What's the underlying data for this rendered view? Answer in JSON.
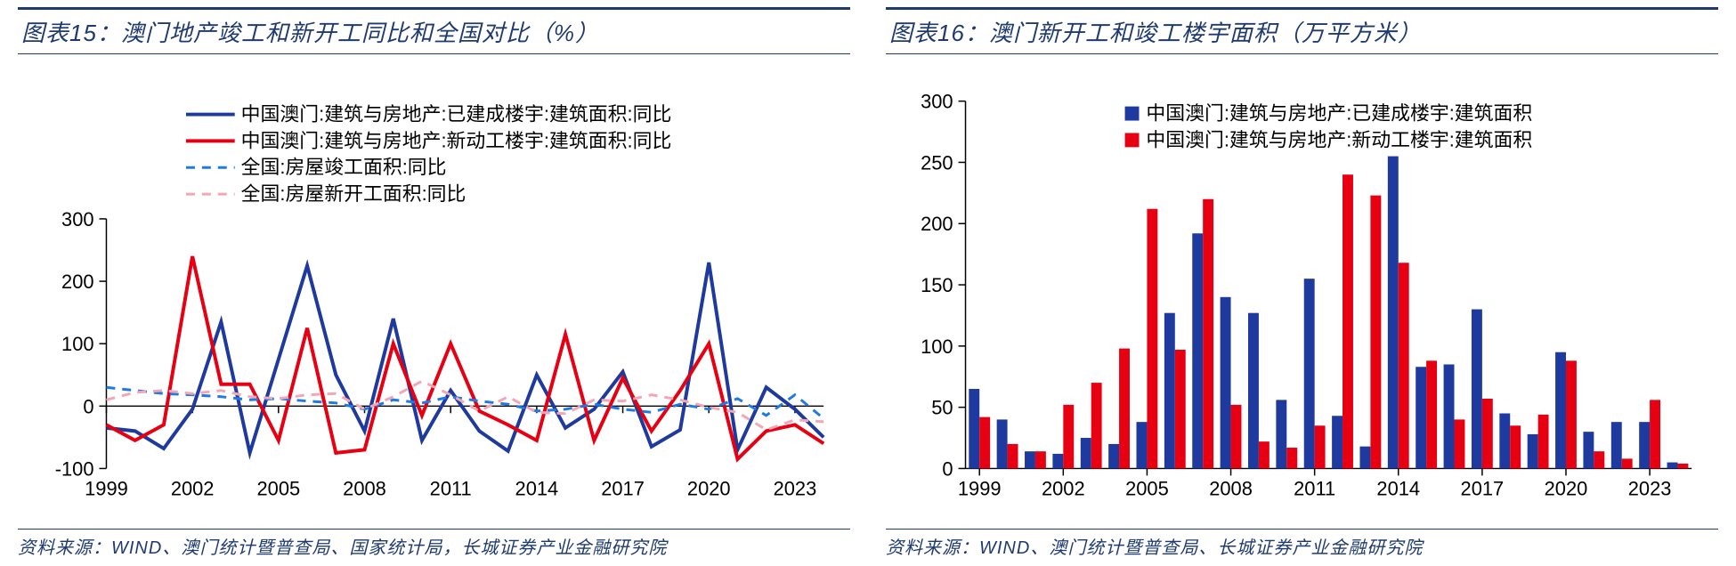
{
  "left": {
    "title": "图表15：澳门地产竣工和新开工同比和全国对比（%）",
    "source": "资料来源：WIND、澳门统计暨普查局、国家统计局，长城证券产业金融研究院",
    "chart": {
      "type": "line",
      "background_color": "#ffffff",
      "grid_color": "#000000",
      "xlim": [
        1999,
        2024
      ],
      "ylim": [
        -100,
        300
      ],
      "yticks": [
        -100,
        0,
        100,
        200,
        300
      ],
      "xticks": [
        1999,
        2002,
        2005,
        2008,
        2011,
        2014,
        2017,
        2020,
        2023
      ],
      "label_fontsize": 22,
      "legend_fontsize": 22,
      "line_width": 4,
      "dash_width": 3,
      "series": [
        {
          "name": "中国澳门:建筑与房地产:已建成楼宇:建筑面积:同比",
          "color": "#1f3a9e",
          "dash": false,
          "years": [
            1999,
            2000,
            2001,
            2002,
            2003,
            2004,
            2005,
            2006,
            2007,
            2008,
            2009,
            2010,
            2011,
            2012,
            2013,
            2014,
            2015,
            2016,
            2017,
            2018,
            2019,
            2020,
            2021,
            2022,
            2023,
            2024
          ],
          "values": [
            -35,
            -40,
            -68,
            -5,
            135,
            -75,
            75,
            225,
            50,
            -40,
            140,
            -55,
            25,
            -40,
            -72,
            50,
            -35,
            -5,
            55,
            -65,
            -38,
            230,
            -70,
            30,
            -5,
            -50
          ]
        },
        {
          "name": "中国澳门:建筑与房地产:新动工楼宇:建筑面积:同比",
          "color": "#e60012",
          "dash": false,
          "years": [
            1999,
            2000,
            2001,
            2002,
            2003,
            2004,
            2005,
            2006,
            2007,
            2008,
            2009,
            2010,
            2011,
            2012,
            2013,
            2014,
            2015,
            2016,
            2017,
            2018,
            2019,
            2020,
            2021,
            2022,
            2023,
            2024
          ],
          "values": [
            -30,
            -55,
            -30,
            240,
            35,
            35,
            -55,
            125,
            -75,
            -70,
            100,
            -15,
            100,
            -8,
            -30,
            -55,
            115,
            -55,
            45,
            -40,
            25,
            100,
            -85,
            -40,
            -30,
            -60
          ]
        },
        {
          "name": "全国:房屋竣工面积:同比",
          "color": "#1f7ae6",
          "dash": true,
          "years": [
            1999,
            2000,
            2001,
            2002,
            2003,
            2004,
            2005,
            2006,
            2007,
            2008,
            2009,
            2010,
            2011,
            2012,
            2013,
            2014,
            2015,
            2016,
            2017,
            2018,
            2019,
            2020,
            2021,
            2022,
            2023,
            2024
          ],
          "values": [
            30,
            25,
            20,
            18,
            15,
            10,
            12,
            8,
            5,
            -5,
            10,
            5,
            15,
            8,
            3,
            -8,
            -5,
            3,
            -5,
            -10,
            3,
            -5,
            12,
            -15,
            18,
            -20
          ]
        },
        {
          "name": "全国:房屋新开工面积:同比",
          "color": "#f4a6b4",
          "dash": true,
          "years": [
            1999,
            2000,
            2001,
            2002,
            2003,
            2004,
            2005,
            2006,
            2007,
            2008,
            2009,
            2010,
            2011,
            2012,
            2013,
            2014,
            2015,
            2016,
            2017,
            2018,
            2019,
            2020,
            2021,
            2022,
            2023,
            2024
          ],
          "values": [
            10,
            22,
            25,
            20,
            25,
            15,
            12,
            18,
            20,
            -5,
            15,
            40,
            18,
            -8,
            15,
            -10,
            -12,
            10,
            8,
            18,
            10,
            -2,
            -10,
            -38,
            -22,
            -25
          ]
        }
      ]
    }
  },
  "right": {
    "title": "图表16：澳门新开工和竣工楼宇面积（万平方米）",
    "source": "资料来源：WIND、澳门统计暨普查局、长城证券产业金融研究院",
    "chart": {
      "type": "bar",
      "background_color": "#ffffff",
      "grid_color": "#000000",
      "xlim": [
        1999,
        2024
      ],
      "ylim": [
        0,
        300
      ],
      "yticks": [
        0,
        50,
        100,
        150,
        200,
        250,
        300
      ],
      "xticks": [
        1999,
        2002,
        2005,
        2008,
        2011,
        2014,
        2017,
        2020,
        2023
      ],
      "label_fontsize": 22,
      "legend_fontsize": 22,
      "bar_width": 0.38,
      "series": [
        {
          "name": "中国澳门:建筑与房地产:已建成楼宇:建筑面积",
          "color": "#1f3a9e",
          "years": [
            1999,
            2000,
            2001,
            2002,
            2003,
            2004,
            2005,
            2006,
            2007,
            2008,
            2009,
            2010,
            2011,
            2012,
            2013,
            2014,
            2015,
            2016,
            2017,
            2018,
            2019,
            2020,
            2021,
            2022,
            2023,
            2024
          ],
          "values": [
            65,
            40,
            14,
            12,
            25,
            20,
            38,
            127,
            192,
            140,
            127,
            56,
            155,
            43,
            18,
            255,
            83,
            85,
            130,
            45,
            28,
            95,
            30,
            38,
            38,
            5
          ]
        },
        {
          "name": "中国澳门:建筑与房地产:新动工楼宇:建筑面积",
          "color": "#e60012",
          "years": [
            1999,
            2000,
            2001,
            2002,
            2003,
            2004,
            2005,
            2006,
            2007,
            2008,
            2009,
            2010,
            2011,
            2012,
            2013,
            2014,
            2015,
            2016,
            2017,
            2018,
            2019,
            2020,
            2021,
            2022,
            2023,
            2024
          ],
          "values": [
            42,
            20,
            14,
            52,
            70,
            98,
            212,
            97,
            220,
            52,
            22,
            17,
            35,
            240,
            223,
            168,
            88,
            40,
            57,
            35,
            44,
            88,
            14,
            8,
            56,
            4
          ]
        }
      ]
    }
  }
}
